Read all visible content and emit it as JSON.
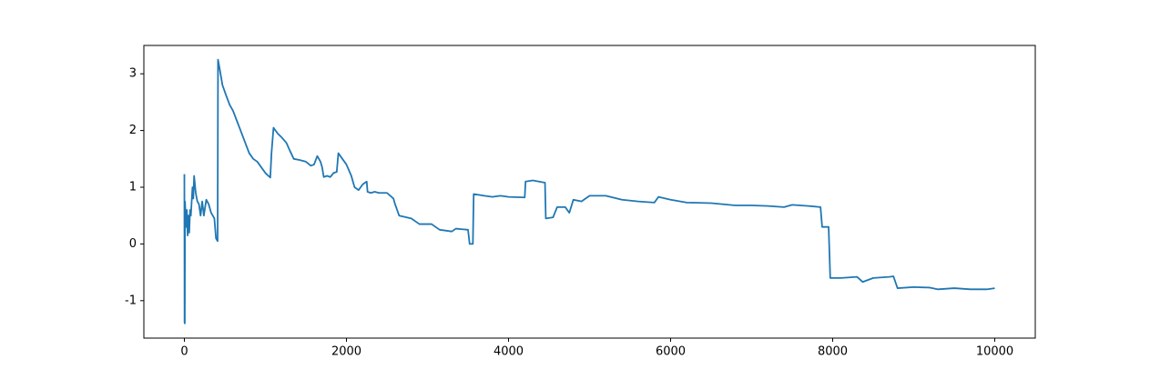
{
  "chart_data": {
    "type": "line",
    "x": [
      0,
      2,
      5,
      8,
      20,
      30,
      40,
      50,
      60,
      70,
      80,
      100,
      110,
      120,
      140,
      160,
      180,
      200,
      220,
      240,
      270,
      300,
      330,
      370,
      390,
      410,
      415,
      440,
      470,
      520,
      560,
      600,
      640,
      680,
      720,
      760,
      800,
      850,
      900,
      950,
      1000,
      1060,
      1075,
      1100,
      1150,
      1200,
      1260,
      1300,
      1350,
      1420,
      1500,
      1560,
      1600,
      1640,
      1680,
      1700,
      1720,
      1760,
      1800,
      1840,
      1880,
      1900,
      1950,
      2000,
      2060,
      2100,
      2150,
      2200,
      2250,
      2260,
      2300,
      2350,
      2400,
      2500,
      2580,
      2600,
      2650,
      2800,
      2850,
      2900,
      3050,
      3100,
      3150,
      3300,
      3350,
      3500,
      3520,
      3560,
      3570,
      3700,
      3800,
      3900,
      4000,
      4200,
      4210,
      4300,
      4450,
      4460,
      4550,
      4600,
      4700,
      4750,
      4800,
      4900,
      5000,
      5200,
      5400,
      5600,
      5800,
      5850,
      6000,
      6200,
      6500,
      6800,
      7000,
      7200,
      7400,
      7500,
      7700,
      7850,
      7870,
      7950,
      7970,
      8100,
      8300,
      8370,
      8500,
      8700,
      8750,
      8800,
      9000,
      9200,
      9300,
      9500,
      9700,
      9900,
      10000
    ],
    "series": [
      {
        "color": "#1f77b4",
        "values": [
          1.23,
          -1.38,
          -1.4,
          0.75,
          0.3,
          0.6,
          0.15,
          0.5,
          0.2,
          0.6,
          0.5,
          1.0,
          0.8,
          1.2,
          0.9,
          0.75,
          0.7,
          0.5,
          0.75,
          0.5,
          0.78,
          0.7,
          0.55,
          0.45,
          0.1,
          0.05,
          3.25,
          3.05,
          2.8,
          2.6,
          2.45,
          2.35,
          2.2,
          2.05,
          1.9,
          1.75,
          1.6,
          1.5,
          1.45,
          1.35,
          1.25,
          1.17,
          1.6,
          2.05,
          1.95,
          1.88,
          1.78,
          1.65,
          1.5,
          1.48,
          1.45,
          1.38,
          1.4,
          1.55,
          1.45,
          1.35,
          1.18,
          1.2,
          1.18,
          1.25,
          1.27,
          1.6,
          1.5,
          1.4,
          1.2,
          1.0,
          0.95,
          1.05,
          1.1,
          0.92,
          0.9,
          0.92,
          0.9,
          0.9,
          0.8,
          0.7,
          0.5,
          0.45,
          0.4,
          0.35,
          0.35,
          0.3,
          0.25,
          0.22,
          0.27,
          0.25,
          0.0,
          0.0,
          0.88,
          0.85,
          0.83,
          0.85,
          0.83,
          0.82,
          1.1,
          1.12,
          1.08,
          0.45,
          0.47,
          0.65,
          0.65,
          0.55,
          0.78,
          0.75,
          0.85,
          0.85,
          0.78,
          0.75,
          0.73,
          0.83,
          0.78,
          0.73,
          0.72,
          0.68,
          0.68,
          0.67,
          0.65,
          0.69,
          0.67,
          0.65,
          0.3,
          0.3,
          -0.6,
          -0.6,
          -0.58,
          -0.67,
          -0.6,
          -0.58,
          -0.57,
          -0.78,
          -0.76,
          -0.77,
          -0.8,
          -0.78,
          -0.8,
          -0.8,
          -0.78
        ]
      }
    ],
    "xlim": [
      -500,
      10500
    ],
    "xticks": [
      0,
      2000,
      4000,
      6000,
      8000,
      10000
    ],
    "ylim": [
      -1.66,
      3.5
    ],
    "yticks": [
      -1,
      0,
      1,
      2,
      3
    ],
    "grid": false
  }
}
